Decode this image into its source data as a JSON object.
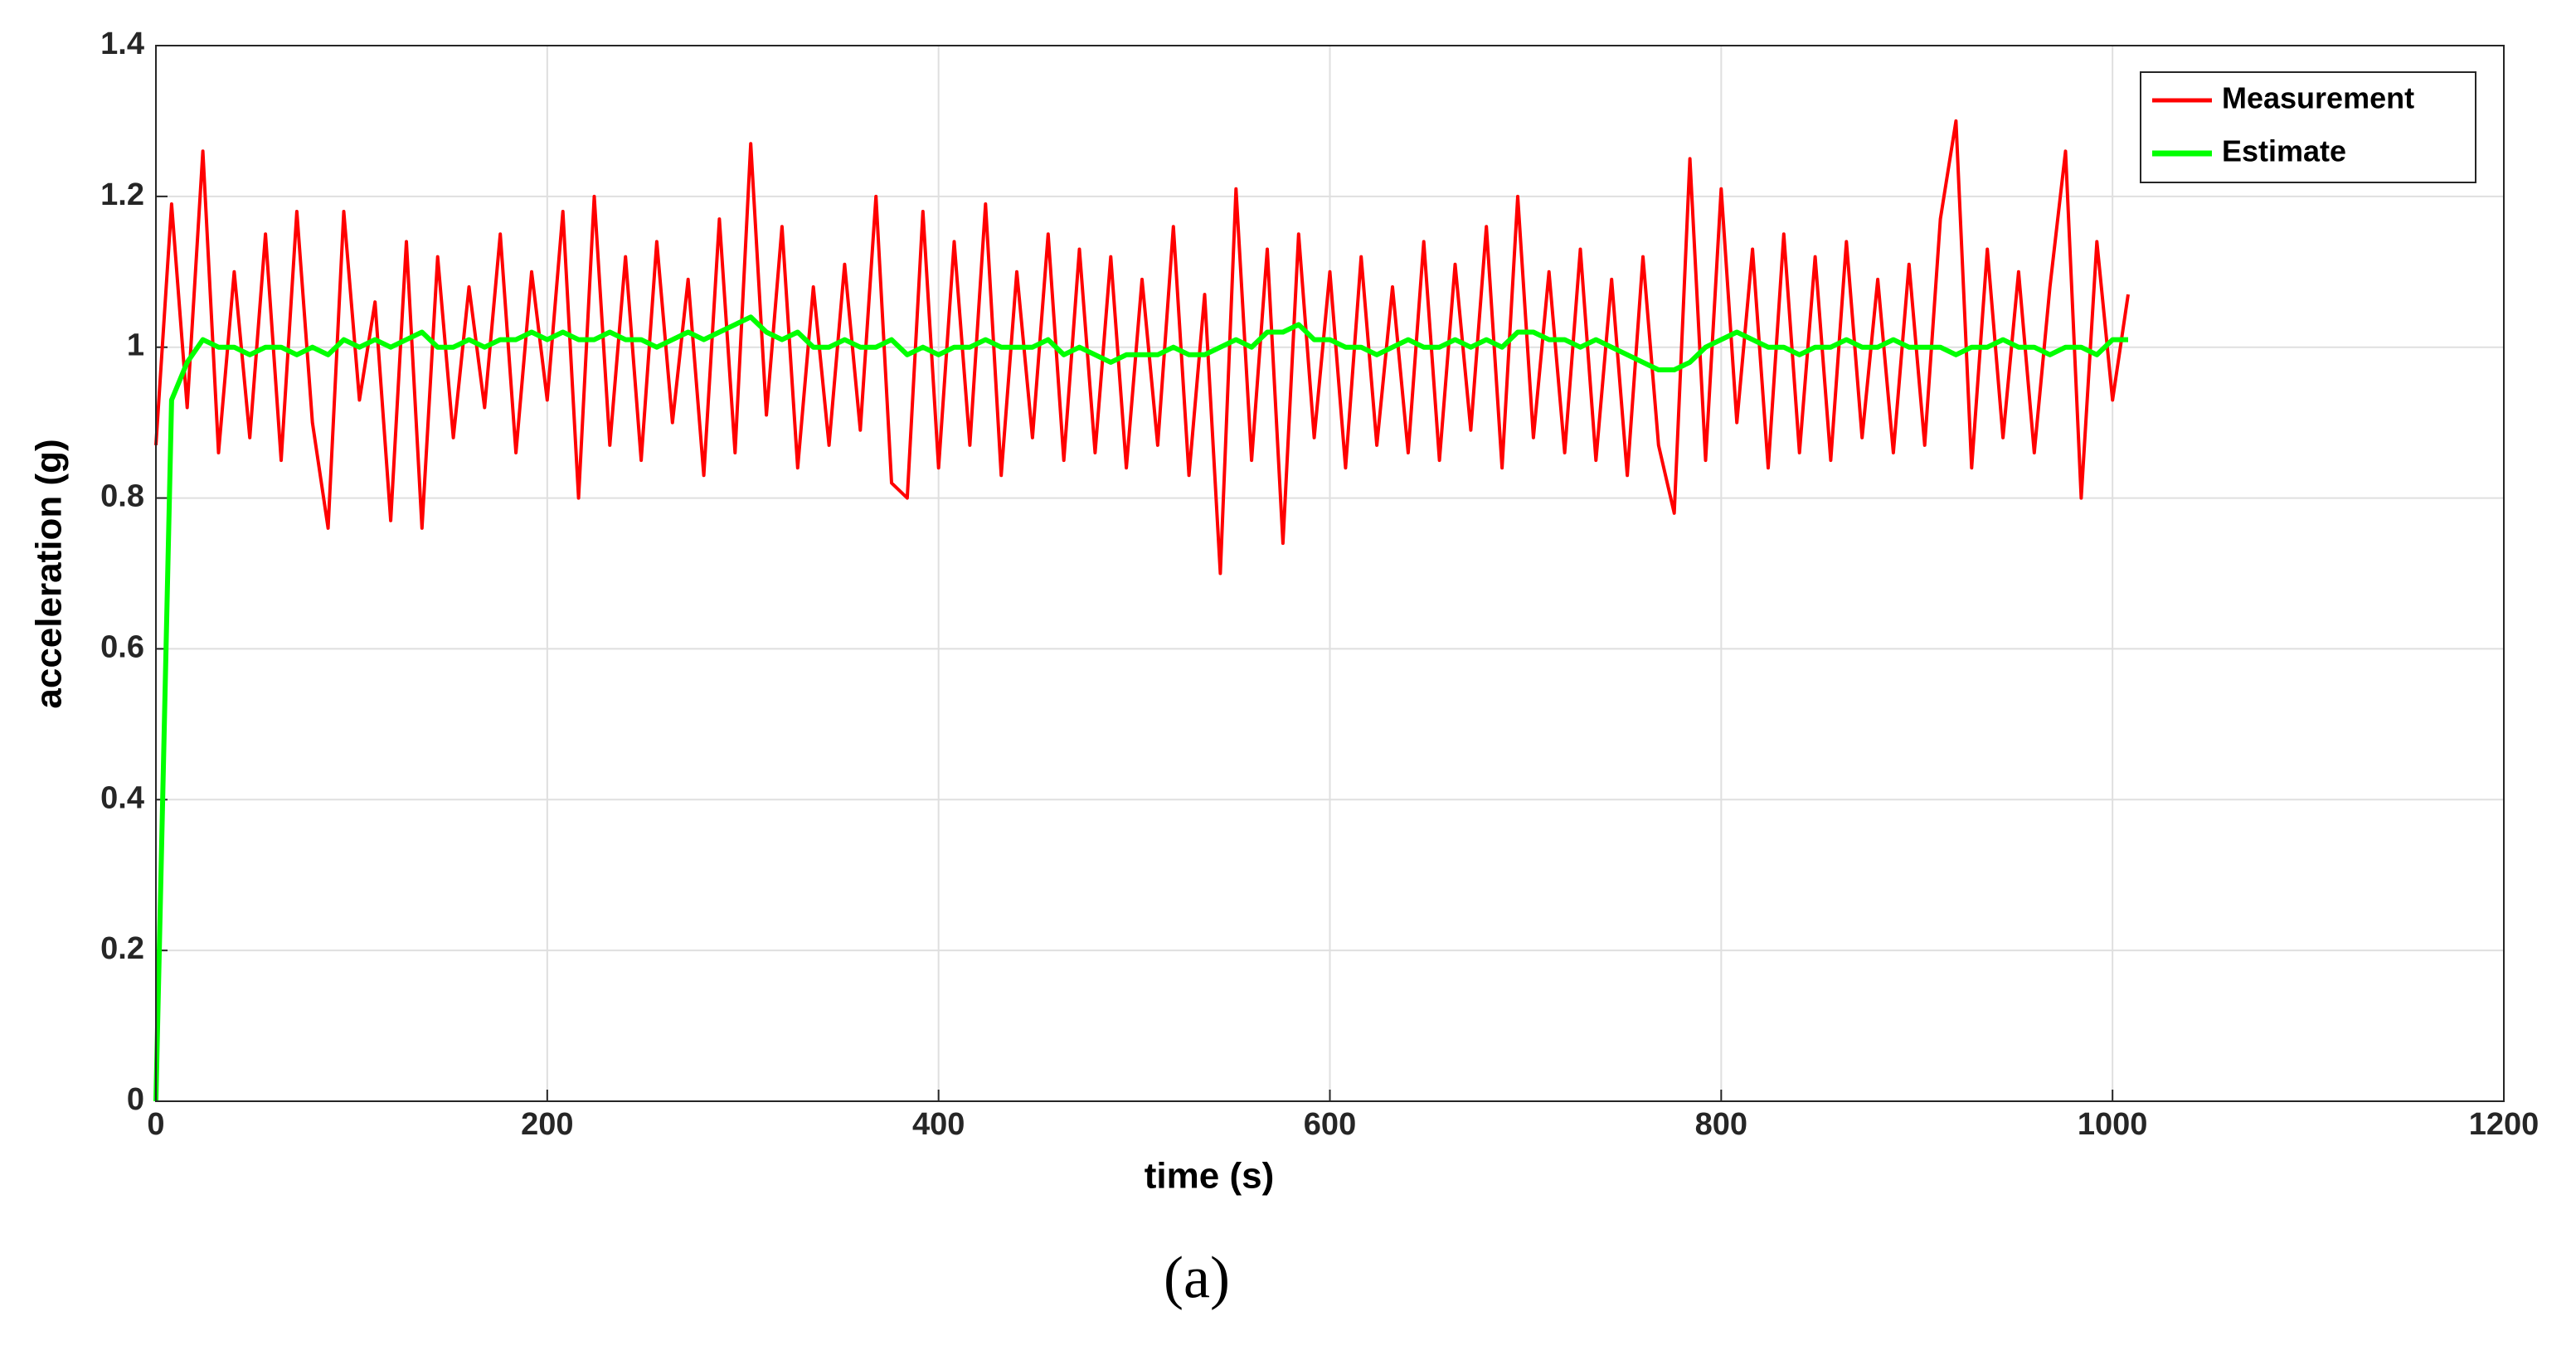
{
  "chart_data": {
    "type": "line",
    "xlabel": "time (s)",
    "ylabel": "acceleration (g)",
    "caption": "(a)",
    "x": [
      0,
      8,
      16,
      24,
      32,
      40,
      48,
      56,
      64,
      72,
      80,
      88,
      96,
      104,
      112,
      120,
      128,
      136,
      144,
      152,
      160,
      168,
      176,
      184,
      192,
      200,
      208,
      216,
      224,
      232,
      240,
      248,
      256,
      264,
      272,
      280,
      288,
      296,
      304,
      312,
      320,
      328,
      336,
      344,
      352,
      360,
      368,
      376,
      384,
      392,
      400,
      408,
      416,
      424,
      432,
      440,
      448,
      456,
      464,
      472,
      480,
      488,
      496,
      504,
      512,
      520,
      528,
      536,
      544,
      552,
      560,
      568,
      576,
      584,
      592,
      600,
      608,
      616,
      624,
      632,
      640,
      648,
      656,
      664,
      672,
      680,
      688,
      696,
      704,
      712,
      720,
      728,
      736,
      744,
      752,
      760,
      768,
      776,
      784,
      792,
      800,
      808,
      816,
      824,
      832,
      840,
      848,
      856,
      864,
      872,
      880,
      888,
      896,
      904,
      912,
      920,
      928,
      936,
      944,
      952,
      960,
      968,
      976,
      984,
      992,
      1000,
      1008
    ],
    "series": [
      {
        "name": "Measurement",
        "color": "#ff0000",
        "values": [
          0.87,
          1.19,
          0.92,
          1.26,
          0.86,
          1.1,
          0.88,
          1.15,
          0.85,
          1.18,
          0.9,
          0.76,
          1.18,
          0.93,
          1.06,
          0.77,
          1.14,
          0.76,
          1.12,
          0.88,
          1.08,
          0.92,
          1.15,
          0.86,
          1.1,
          0.93,
          1.18,
          0.8,
          1.2,
          0.87,
          1.12,
          0.85,
          1.14,
          0.9,
          1.09,
          0.83,
          1.17,
          0.86,
          1.27,
          0.91,
          1.16,
          0.84,
          1.08,
          0.87,
          1.11,
          0.89,
          1.2,
          0.82,
          0.8,
          1.18,
          0.84,
          1.14,
          0.87,
          1.19,
          0.83,
          1.1,
          0.88,
          1.15,
          0.85,
          1.13,
          0.86,
          1.12,
          0.84,
          1.09,
          0.87,
          1.16,
          0.83,
          1.07,
          0.7,
          1.21,
          0.85,
          1.13,
          0.74,
          1.15,
          0.88,
          1.1,
          0.84,
          1.12,
          0.87,
          1.08,
          0.86,
          1.14,
          0.85,
          1.11,
          0.89,
          1.16,
          0.84,
          1.2,
          0.88,
          1.1,
          0.86,
          1.13,
          0.85,
          1.09,
          0.83,
          1.12,
          0.87,
          0.78,
          1.25,
          0.85,
          1.21,
          0.9,
          1.13,
          0.84,
          1.15,
          0.86,
          1.12,
          0.85,
          1.14,
          0.88,
          1.09,
          0.86,
          1.11,
          0.87,
          1.17,
          1.3,
          0.84,
          1.13,
          0.88,
          1.1,
          0.86,
          1.08,
          1.26,
          0.8,
          1.14,
          0.93,
          1.07
        ]
      },
      {
        "name": "Estimate",
        "color": "#00ff00",
        "values": [
          0,
          0.93,
          0.98,
          1.01,
          1.0,
          1.0,
          0.99,
          1.0,
          1.0,
          0.99,
          1.0,
          0.99,
          1.01,
          1.0,
          1.01,
          1.0,
          1.01,
          1.02,
          1.0,
          1.0,
          1.01,
          1.0,
          1.01,
          1.01,
          1.02,
          1.01,
          1.02,
          1.01,
          1.01,
          1.02,
          1.01,
          1.01,
          1.0,
          1.01,
          1.02,
          1.01,
          1.02,
          1.03,
          1.04,
          1.02,
          1.01,
          1.02,
          1.0,
          1.0,
          1.01,
          1.0,
          1.0,
          1.01,
          0.99,
          1.0,
          0.99,
          1.0,
          1.0,
          1.01,
          1.0,
          1.0,
          1.0,
          1.01,
          0.99,
          1.0,
          0.99,
          0.98,
          0.99,
          0.99,
          0.99,
          1.0,
          0.99,
          0.99,
          1.0,
          1.01,
          1.0,
          1.02,
          1.02,
          1.03,
          1.01,
          1.01,
          1.0,
          1.0,
          0.99,
          1.0,
          1.01,
          1.0,
          1.0,
          1.01,
          1.0,
          1.01,
          1.0,
          1.02,
          1.02,
          1.01,
          1.01,
          1.0,
          1.01,
          1.0,
          0.99,
          0.98,
          0.97,
          0.97,
          0.98,
          1.0,
          1.01,
          1.02,
          1.01,
          1.0,
          1.0,
          0.99,
          1.0,
          1.0,
          1.01,
          1.0,
          1.0,
          1.01,
          1.0,
          1.0,
          1.0,
          0.99,
          1.0,
          1.0,
          1.01,
          1.0,
          1.0,
          0.99,
          1.0,
          1.0,
          0.99,
          1.01,
          1.01
        ]
      }
    ],
    "xlim": [
      0,
      1200
    ],
    "xticks": [
      0,
      200,
      400,
      600,
      800,
      1000,
      1200
    ],
    "ylim": [
      0,
      1.4
    ],
    "yticks": [
      0,
      0.2,
      0.4,
      0.6,
      0.8,
      1,
      1.2,
      1.4
    ],
    "grid": true,
    "legend": "upper right"
  }
}
